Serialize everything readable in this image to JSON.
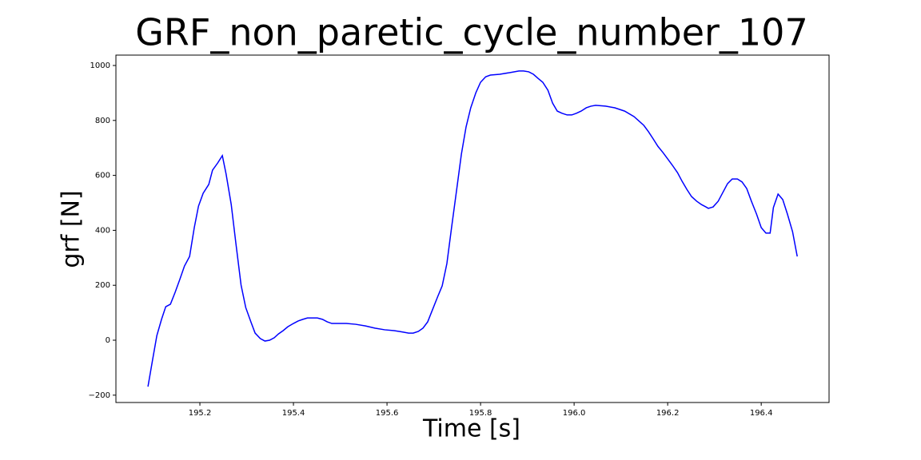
{
  "chart_data": {
    "type": "line",
    "title": "GRF_non_paretic_cycle_number_107",
    "xlabel": "Time [s]",
    "ylabel": "grf [N]",
    "color": "#0000ff",
    "x": [
      195.089,
      195.099,
      195.108,
      195.118,
      195.127,
      195.137,
      195.147,
      195.157,
      195.167,
      195.178,
      195.188,
      195.197,
      195.207,
      195.219,
      195.227,
      195.238,
      195.248,
      195.256,
      195.267,
      195.277,
      195.288,
      195.298,
      195.309,
      195.318,
      195.329,
      195.339,
      195.349,
      195.359,
      195.368,
      195.378,
      195.388,
      195.4,
      195.41,
      195.42,
      195.43,
      195.441,
      195.451,
      195.462,
      195.472,
      195.482,
      195.492,
      195.513,
      195.533,
      195.554,
      195.574,
      195.595,
      195.615,
      195.626,
      195.636,
      195.646,
      195.656,
      195.667,
      195.677,
      195.687,
      195.697,
      195.708,
      195.718,
      195.728,
      195.738,
      195.749,
      195.759,
      195.769,
      195.779,
      195.79,
      195.8,
      195.811,
      195.821,
      195.841,
      195.862,
      195.882,
      195.892,
      195.903,
      195.913,
      195.923,
      195.933,
      195.944,
      195.954,
      195.964,
      195.974,
      195.985,
      195.995,
      196.005,
      196.015,
      196.026,
      196.036,
      196.046,
      196.067,
      196.087,
      196.108,
      196.128,
      196.138,
      196.149,
      196.159,
      196.169,
      196.179,
      196.19,
      196.2,
      196.21,
      196.221,
      196.231,
      196.241,
      196.251,
      196.262,
      196.272,
      196.282,
      196.287,
      196.297,
      196.308,
      196.318,
      196.328,
      196.338,
      196.349,
      196.359,
      196.369,
      196.379,
      196.39,
      196.4,
      196.41,
      196.419,
      196.426,
      196.436,
      196.446,
      196.456,
      196.467,
      196.477
    ],
    "values": [
      -169,
      -70,
      17,
      76,
      122,
      131,
      174,
      221,
      270,
      305,
      410,
      488,
      535,
      567,
      619,
      645,
      672,
      605,
      494,
      352,
      201,
      119,
      67,
      26,
      6,
      -3,
      0,
      9,
      23,
      35,
      49,
      61,
      70,
      76,
      81,
      81,
      81,
      76,
      67,
      61,
      61,
      61,
      58,
      52,
      44,
      38,
      35,
      32,
      29,
      26,
      26,
      32,
      44,
      67,
      110,
      157,
      198,
      279,
      410,
      549,
      677,
      776,
      846,
      901,
      939,
      959,
      965,
      968,
      974,
      980,
      980,
      977,
      968,
      953,
      939,
      910,
      863,
      834,
      826,
      820,
      820,
      826,
      834,
      846,
      852,
      855,
      852,
      846,
      834,
      814,
      799,
      782,
      759,
      733,
      706,
      683,
      660,
      637,
      610,
      578,
      549,
      523,
      506,
      494,
      485,
      480,
      485,
      506,
      538,
      570,
      587,
      587,
      576,
      552,
      506,
      459,
      410,
      390,
      390,
      483,
      532,
      512,
      459,
      395,
      305
    ],
    "xlim": [
      195.0205,
      196.545
    ],
    "ylim": [
      -226.7,
      1037.8
    ],
    "xticks": [
      195.2,
      195.4,
      195.6,
      195.8,
      {
        "value": 196,
        "label": "196.0"
      },
      196.2,
      196.4
    ],
    "yticks": [
      {
        "value": -200,
        "label": "−200"
      },
      0,
      200,
      400,
      600,
      800,
      1000
    ]
  }
}
